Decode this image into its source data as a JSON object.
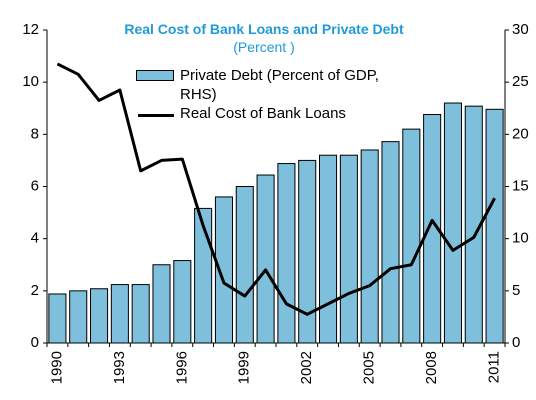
{
  "chart_data": {
    "type": "bar+line",
    "title": "Real Cost of Bank Loans and Private Debt",
    "title_unit": "(Percent )",
    "categories": [
      "1990",
      "1991",
      "1992",
      "1993",
      "1994",
      "1995",
      "1996",
      "1997",
      "1998",
      "1999",
      "2000",
      "2001",
      "2002",
      "2003",
      "2004",
      "2005",
      "2006",
      "2007",
      "2008",
      "2009",
      "2010",
      "2011"
    ],
    "x_tick_labels": [
      "1990",
      "1993",
      "1996",
      "1999",
      "2002",
      "2005",
      "2008",
      "2011"
    ],
    "series": [
      {
        "name": "Private Debt (Percent of GDP, RHS)",
        "name_line1": "Private Debt (Percent of GDP,",
        "name_line2": "RHS)",
        "type": "bar",
        "axis": "right",
        "values": [
          4.7,
          5.0,
          5.2,
          5.6,
          5.6,
          7.5,
          7.9,
          12.9,
          14.0,
          15.0,
          16.1,
          17.2,
          17.5,
          18.0,
          18.0,
          18.5,
          19.3,
          20.5,
          21.9,
          23.0,
          22.7,
          22.4
        ]
      },
      {
        "name": "Real Cost of Bank Loans",
        "type": "line",
        "axis": "left",
        "values": [
          10.7,
          10.3,
          9.3,
          9.7,
          6.6,
          7.0,
          7.05,
          4.5,
          2.3,
          1.8,
          2.8,
          1.5,
          1.1,
          1.5,
          1.9,
          2.2,
          2.85,
          3.0,
          4.7,
          3.55,
          4.05,
          5.55
        ]
      }
    ],
    "y_left": {
      "min": 0,
      "max": 12,
      "ticks": [
        0,
        2,
        4,
        6,
        8,
        10,
        12
      ]
    },
    "y_right": {
      "min": 0,
      "max": 30,
      "ticks": [
        "0",
        "5",
        "10",
        "15",
        "20",
        "25",
        "30"
      ]
    },
    "legend_position": "top-center",
    "colors": {
      "bar_fill": "#7ec0dc",
      "bar_stroke": "#000000",
      "line": "#000000",
      "title": "#1f9bd7"
    }
  }
}
